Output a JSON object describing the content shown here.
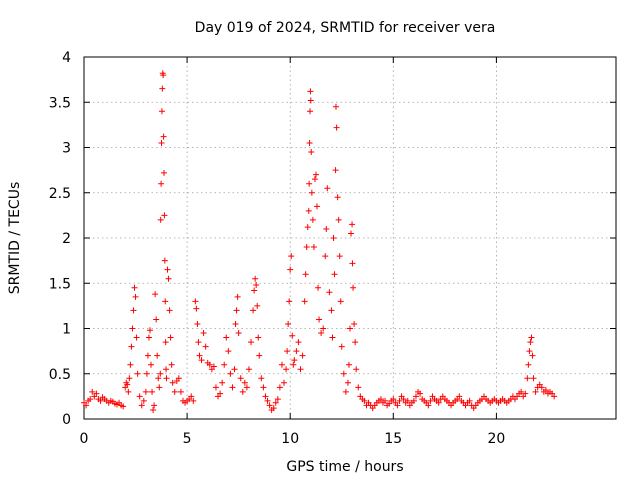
{
  "chart_data": {
    "type": "scatter",
    "title": "Day 019 of 2024, SRMTID for receiver vera",
    "xlabel": "GPS time / hours",
    "ylabel": "SRMTID / TECUs",
    "xlim": [
      0,
      25.8
    ],
    "ylim": [
      0,
      4
    ],
    "xticks": [
      0,
      5,
      10,
      15,
      20
    ],
    "xtick_labels": [
      "0",
      "5",
      "10",
      "15",
      "20"
    ],
    "yticks": [
      0,
      0.5,
      1,
      1.5,
      2,
      2.5,
      3,
      3.5,
      4
    ],
    "ytick_labels": [
      "0",
      "0.5",
      "1",
      "1.5",
      "2",
      "2.5",
      "3",
      "3.5",
      "4"
    ],
    "grid": true,
    "marker": "+",
    "color": "#ff0000",
    "series": [
      {
        "name": "SRMTID",
        "points": [
          [
            0.0,
            0.18
          ],
          [
            0.1,
            0.15
          ],
          [
            0.2,
            0.2
          ],
          [
            0.3,
            0.22
          ],
          [
            0.4,
            0.3
          ],
          [
            0.5,
            0.25
          ],
          [
            0.6,
            0.28
          ],
          [
            0.7,
            0.22
          ],
          [
            0.8,
            0.2
          ],
          [
            0.9,
            0.24
          ],
          [
            1.0,
            0.22
          ],
          [
            1.1,
            0.2
          ],
          [
            1.2,
            0.18
          ],
          [
            1.3,
            0.2
          ],
          [
            1.4,
            0.19
          ],
          [
            1.5,
            0.17
          ],
          [
            1.6,
            0.16
          ],
          [
            1.7,
            0.18
          ],
          [
            1.8,
            0.15
          ],
          [
            1.9,
            0.14
          ],
          [
            2.0,
            0.35
          ],
          [
            2.05,
            0.4
          ],
          [
            2.1,
            0.38
          ],
          [
            2.15,
            0.3
          ],
          [
            2.2,
            0.45
          ],
          [
            2.25,
            0.6
          ],
          [
            2.3,
            0.8
          ],
          [
            2.35,
            1.0
          ],
          [
            2.4,
            1.2
          ],
          [
            2.45,
            1.45
          ],
          [
            2.5,
            1.35
          ],
          [
            2.55,
            0.9
          ],
          [
            2.6,
            0.5
          ],
          [
            2.7,
            0.25
          ],
          [
            2.8,
            0.15
          ],
          [
            2.9,
            0.2
          ],
          [
            3.0,
            0.3
          ],
          [
            3.05,
            0.5
          ],
          [
            3.1,
            0.7
          ],
          [
            3.15,
            0.9
          ],
          [
            3.2,
            0.98
          ],
          [
            3.25,
            0.6
          ],
          [
            3.3,
            0.3
          ],
          [
            3.35,
            0.1
          ],
          [
            3.4,
            0.15
          ],
          [
            3.45,
            1.38
          ],
          [
            3.5,
            1.1
          ],
          [
            3.55,
            0.7
          ],
          [
            3.6,
            0.45
          ],
          [
            3.65,
            0.35
          ],
          [
            3.7,
            0.5
          ],
          [
            3.72,
            2.2
          ],
          [
            3.74,
            2.6
          ],
          [
            3.76,
            3.05
          ],
          [
            3.78,
            3.4
          ],
          [
            3.8,
            3.65
          ],
          [
            3.82,
            3.82
          ],
          [
            3.84,
            3.8
          ],
          [
            3.86,
            3.12
          ],
          [
            3.88,
            2.72
          ],
          [
            3.9,
            2.25
          ],
          [
            3.92,
            1.75
          ],
          [
            3.94,
            1.3
          ],
          [
            3.96,
            0.85
          ],
          [
            3.98,
            0.55
          ],
          [
            4.0,
            0.45
          ],
          [
            4.05,
            1.65
          ],
          [
            4.1,
            1.55
          ],
          [
            4.15,
            1.2
          ],
          [
            4.2,
            0.9
          ],
          [
            4.25,
            0.6
          ],
          [
            4.3,
            0.4
          ],
          [
            4.4,
            0.3
          ],
          [
            4.5,
            0.42
          ],
          [
            4.6,
            0.45
          ],
          [
            4.7,
            0.3
          ],
          [
            4.8,
            0.2
          ],
          [
            4.9,
            0.18
          ],
          [
            5.0,
            0.2
          ],
          [
            5.1,
            0.22
          ],
          [
            5.2,
            0.25
          ],
          [
            5.3,
            0.2
          ],
          [
            5.4,
            1.3
          ],
          [
            5.45,
            1.22
          ],
          [
            5.5,
            1.05
          ],
          [
            5.55,
            0.85
          ],
          [
            5.6,
            0.7
          ],
          [
            5.7,
            0.65
          ],
          [
            5.8,
            0.95
          ],
          [
            5.9,
            0.8
          ],
          [
            6.0,
            0.62
          ],
          [
            6.1,
            0.6
          ],
          [
            6.2,
            0.55
          ],
          [
            6.3,
            0.58
          ],
          [
            6.4,
            0.35
          ],
          [
            6.5,
            0.25
          ],
          [
            6.6,
            0.28
          ],
          [
            6.7,
            0.4
          ],
          [
            6.8,
            0.6
          ],
          [
            6.9,
            0.9
          ],
          [
            7.0,
            0.75
          ],
          [
            7.1,
            0.5
          ],
          [
            7.2,
            0.35
          ],
          [
            7.3,
            0.55
          ],
          [
            7.35,
            1.05
          ],
          [
            7.4,
            1.2
          ],
          [
            7.45,
            1.35
          ],
          [
            7.5,
            0.95
          ],
          [
            7.6,
            0.45
          ],
          [
            7.7,
            0.3
          ],
          [
            7.8,
            0.4
          ],
          [
            7.9,
            0.35
          ],
          [
            8.0,
            0.55
          ],
          [
            8.1,
            0.85
          ],
          [
            8.2,
            1.2
          ],
          [
            8.25,
            1.42
          ],
          [
            8.3,
            1.55
          ],
          [
            8.35,
            1.48
          ],
          [
            8.4,
            1.25
          ],
          [
            8.45,
            0.9
          ],
          [
            8.5,
            0.7
          ],
          [
            8.6,
            0.45
          ],
          [
            8.7,
            0.35
          ],
          [
            8.8,
            0.25
          ],
          [
            8.9,
            0.2
          ],
          [
            9.0,
            0.15
          ],
          [
            9.1,
            0.1
          ],
          [
            9.2,
            0.12
          ],
          [
            9.3,
            0.18
          ],
          [
            9.4,
            0.22
          ],
          [
            9.5,
            0.35
          ],
          [
            9.6,
            0.6
          ],
          [
            9.7,
            0.4
          ],
          [
            9.8,
            0.55
          ],
          [
            9.85,
            0.75
          ],
          [
            9.9,
            1.05
          ],
          [
            9.95,
            1.3
          ],
          [
            10.0,
            1.65
          ],
          [
            10.05,
            1.8
          ],
          [
            10.1,
            0.92
          ],
          [
            10.15,
            0.6
          ],
          [
            10.2,
            0.65
          ],
          [
            10.3,
            0.75
          ],
          [
            10.4,
            0.85
          ],
          [
            10.5,
            0.55
          ],
          [
            10.6,
            0.7
          ],
          [
            10.7,
            1.3
          ],
          [
            10.75,
            1.6
          ],
          [
            10.8,
            1.9
          ],
          [
            10.85,
            2.12
          ],
          [
            10.9,
            2.3
          ],
          [
            10.92,
            2.6
          ],
          [
            10.94,
            3.05
          ],
          [
            10.96,
            3.4
          ],
          [
            10.98,
            3.62
          ],
          [
            11.0,
            3.52
          ],
          [
            11.02,
            2.95
          ],
          [
            11.05,
            2.5
          ],
          [
            11.1,
            2.2
          ],
          [
            11.15,
            1.9
          ],
          [
            11.2,
            2.65
          ],
          [
            11.25,
            2.7
          ],
          [
            11.3,
            2.35
          ],
          [
            11.35,
            1.45
          ],
          [
            11.4,
            1.1
          ],
          [
            11.5,
            0.95
          ],
          [
            11.6,
            1.0
          ],
          [
            11.7,
            1.8
          ],
          [
            11.75,
            2.1
          ],
          [
            11.8,
            2.55
          ],
          [
            11.9,
            1.4
          ],
          [
            12.0,
            1.2
          ],
          [
            12.05,
            0.9
          ],
          [
            12.1,
            2.0
          ],
          [
            12.15,
            1.6
          ],
          [
            12.2,
            2.75
          ],
          [
            12.22,
            3.45
          ],
          [
            12.25,
            3.22
          ],
          [
            12.3,
            2.45
          ],
          [
            12.35,
            2.2
          ],
          [
            12.4,
            1.8
          ],
          [
            12.45,
            1.3
          ],
          [
            12.5,
            0.8
          ],
          [
            12.6,
            0.5
          ],
          [
            12.7,
            0.3
          ],
          [
            12.8,
            0.4
          ],
          [
            12.85,
            0.6
          ],
          [
            12.9,
            1.0
          ],
          [
            12.95,
            2.05
          ],
          [
            13.0,
            2.15
          ],
          [
            13.02,
            1.72
          ],
          [
            13.05,
            1.45
          ],
          [
            13.1,
            1.05
          ],
          [
            13.15,
            0.85
          ],
          [
            13.2,
            0.55
          ],
          [
            13.3,
            0.35
          ],
          [
            13.4,
            0.25
          ],
          [
            13.5,
            0.22
          ],
          [
            13.6,
            0.2
          ],
          [
            13.7,
            0.15
          ],
          [
            13.8,
            0.18
          ],
          [
            13.9,
            0.15
          ],
          [
            14.0,
            0.12
          ],
          [
            14.1,
            0.15
          ],
          [
            14.2,
            0.18
          ],
          [
            14.3,
            0.2
          ],
          [
            14.4,
            0.22
          ],
          [
            14.5,
            0.18
          ],
          [
            14.6,
            0.2
          ],
          [
            14.7,
            0.15
          ],
          [
            14.8,
            0.17
          ],
          [
            14.9,
            0.2
          ],
          [
            15.0,
            0.22
          ],
          [
            15.1,
            0.18
          ],
          [
            15.2,
            0.15
          ],
          [
            15.3,
            0.2
          ],
          [
            15.4,
            0.25
          ],
          [
            15.5,
            0.22
          ],
          [
            15.6,
            0.18
          ],
          [
            15.7,
            0.2
          ],
          [
            15.8,
            0.15
          ],
          [
            15.9,
            0.18
          ],
          [
            16.0,
            0.2
          ],
          [
            16.1,
            0.25
          ],
          [
            16.2,
            0.3
          ],
          [
            16.3,
            0.28
          ],
          [
            16.4,
            0.22
          ],
          [
            16.5,
            0.2
          ],
          [
            16.6,
            0.18
          ],
          [
            16.7,
            0.15
          ],
          [
            16.8,
            0.2
          ],
          [
            16.9,
            0.25
          ],
          [
            17.0,
            0.22
          ],
          [
            17.1,
            0.2
          ],
          [
            17.2,
            0.18
          ],
          [
            17.3,
            0.22
          ],
          [
            17.4,
            0.25
          ],
          [
            17.5,
            0.22
          ],
          [
            17.6,
            0.2
          ],
          [
            17.7,
            0.18
          ],
          [
            17.8,
            0.15
          ],
          [
            17.9,
            0.18
          ],
          [
            18.0,
            0.2
          ],
          [
            18.1,
            0.22
          ],
          [
            18.2,
            0.25
          ],
          [
            18.3,
            0.2
          ],
          [
            18.4,
            0.18
          ],
          [
            18.5,
            0.15
          ],
          [
            18.6,
            0.18
          ],
          [
            18.7,
            0.2
          ],
          [
            18.8,
            0.15
          ],
          [
            18.9,
            0.12
          ],
          [
            19.0,
            0.15
          ],
          [
            19.1,
            0.18
          ],
          [
            19.2,
            0.2
          ],
          [
            19.3,
            0.22
          ],
          [
            19.4,
            0.25
          ],
          [
            19.5,
            0.22
          ],
          [
            19.6,
            0.2
          ],
          [
            19.7,
            0.18
          ],
          [
            19.8,
            0.2
          ],
          [
            19.9,
            0.22
          ],
          [
            20.0,
            0.2
          ],
          [
            20.1,
            0.18
          ],
          [
            20.2,
            0.2
          ],
          [
            20.3,
            0.22
          ],
          [
            20.4,
            0.2
          ],
          [
            20.5,
            0.18
          ],
          [
            20.6,
            0.2
          ],
          [
            20.7,
            0.22
          ],
          [
            20.8,
            0.25
          ],
          [
            20.9,
            0.22
          ],
          [
            21.0,
            0.25
          ],
          [
            21.1,
            0.28
          ],
          [
            21.2,
            0.3
          ],
          [
            21.3,
            0.25
          ],
          [
            21.4,
            0.28
          ],
          [
            21.5,
            0.45
          ],
          [
            21.55,
            0.6
          ],
          [
            21.6,
            0.75
          ],
          [
            21.65,
            0.85
          ],
          [
            21.7,
            0.9
          ],
          [
            21.75,
            0.7
          ],
          [
            21.8,
            0.45
          ],
          [
            21.9,
            0.3
          ],
          [
            22.0,
            0.35
          ],
          [
            22.1,
            0.38
          ],
          [
            22.2,
            0.35
          ],
          [
            22.3,
            0.3
          ],
          [
            22.4,
            0.32
          ],
          [
            22.5,
            0.28
          ],
          [
            22.6,
            0.3
          ],
          [
            22.7,
            0.28
          ],
          [
            22.8,
            0.25
          ]
        ]
      }
    ]
  }
}
